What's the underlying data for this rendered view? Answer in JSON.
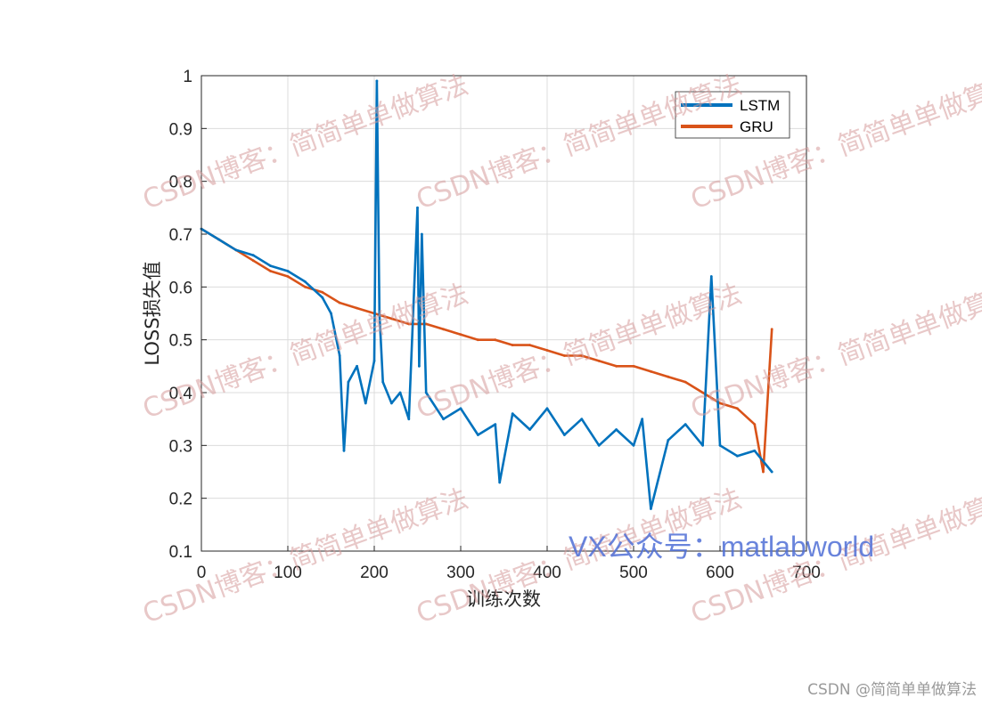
{
  "chart_data": {
    "type": "line",
    "title": "",
    "xlabel": "训练次数",
    "ylabel": "LOSS损失值",
    "xlim": [
      0,
      700
    ],
    "ylim": [
      0.1,
      1.0
    ],
    "xticks": [
      0,
      100,
      200,
      300,
      400,
      500,
      600,
      700
    ],
    "yticks": [
      0.1,
      0.2,
      0.3,
      0.4,
      0.5,
      0.6,
      0.7,
      0.8,
      0.9,
      1.0
    ],
    "ytick_labels": [
      "0.1",
      "0.2",
      "0.3",
      "0.4",
      "0.5",
      "0.6",
      "0.7",
      "0.8",
      "0.9",
      "1"
    ],
    "grid": true,
    "legend_position": "top-right",
    "series": [
      {
        "name": "LSTM",
        "color": "#0072BD",
        "x": [
          0,
          20,
          40,
          60,
          80,
          100,
          120,
          140,
          150,
          160,
          165,
          170,
          180,
          190,
          200,
          203,
          206,
          210,
          220,
          230,
          240,
          250,
          252,
          255,
          260,
          280,
          300,
          320,
          340,
          345,
          360,
          380,
          400,
          420,
          440,
          460,
          480,
          500,
          510,
          520,
          540,
          560,
          580,
          590,
          600,
          620,
          640,
          660
        ],
        "values": [
          0.71,
          0.69,
          0.67,
          0.66,
          0.64,
          0.63,
          0.61,
          0.58,
          0.55,
          0.47,
          0.29,
          0.42,
          0.45,
          0.38,
          0.46,
          0.99,
          0.55,
          0.42,
          0.38,
          0.4,
          0.35,
          0.75,
          0.45,
          0.7,
          0.4,
          0.35,
          0.37,
          0.32,
          0.34,
          0.23,
          0.36,
          0.33,
          0.37,
          0.32,
          0.35,
          0.3,
          0.33,
          0.3,
          0.35,
          0.18,
          0.31,
          0.34,
          0.3,
          0.62,
          0.3,
          0.28,
          0.29,
          0.25
        ]
      },
      {
        "name": "GRU",
        "color": "#D95319",
        "x": [
          0,
          20,
          40,
          60,
          80,
          100,
          120,
          140,
          160,
          180,
          200,
          220,
          240,
          260,
          280,
          300,
          320,
          340,
          360,
          380,
          400,
          420,
          440,
          460,
          480,
          500,
          520,
          540,
          560,
          580,
          600,
          620,
          640,
          650,
          660
        ],
        "values": [
          0.71,
          0.69,
          0.67,
          0.65,
          0.63,
          0.62,
          0.6,
          0.59,
          0.57,
          0.56,
          0.55,
          0.54,
          0.53,
          0.53,
          0.52,
          0.51,
          0.5,
          0.5,
          0.49,
          0.49,
          0.48,
          0.47,
          0.47,
          0.46,
          0.45,
          0.45,
          0.44,
          0.43,
          0.42,
          0.4,
          0.38,
          0.37,
          0.34,
          0.25,
          0.52
        ]
      }
    ]
  },
  "watermarks": {
    "csdn_blog": "CSDN博客：简简单单做算法",
    "vx": "VX公众号：matlabworld"
  },
  "footer": "CSDN @简简单单做算法"
}
